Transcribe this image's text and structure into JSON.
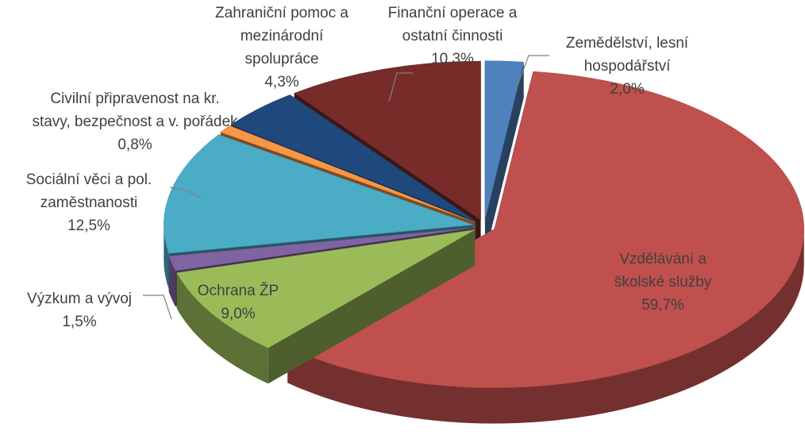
{
  "chart_data": {
    "type": "pie",
    "categories": [
      "Zemědělství, lesní\nhospodářství",
      "Vzdělávání a\nškolské služby",
      "Ochrana ŽP",
      "Výzkum a vývoj",
      "Sociální věci a pol.\nzaměstnanosti",
      "Civilní připravenost na kr.\nstavy, bezpečnost a v. pořádek",
      "Zahraniční pomoc a\nmezinárodní\nspolupráce",
      "Finanční operace a\nostatní činnosti"
    ],
    "values": [
      2.0,
      59.7,
      9.0,
      1.5,
      12.5,
      0.8,
      4.3,
      10.3
    ],
    "value_labels": [
      "2,0%",
      "59,7%",
      "9,0%",
      "1,5%",
      "12,5%",
      "0,8%",
      "4,3%",
      "10,3%"
    ],
    "colors": [
      "#4f81bd",
      "#c0504d",
      "#9bbb59",
      "#8064a2",
      "#4bacc6",
      "#f79646",
      "#1f497d",
      "#772c2a"
    ]
  }
}
